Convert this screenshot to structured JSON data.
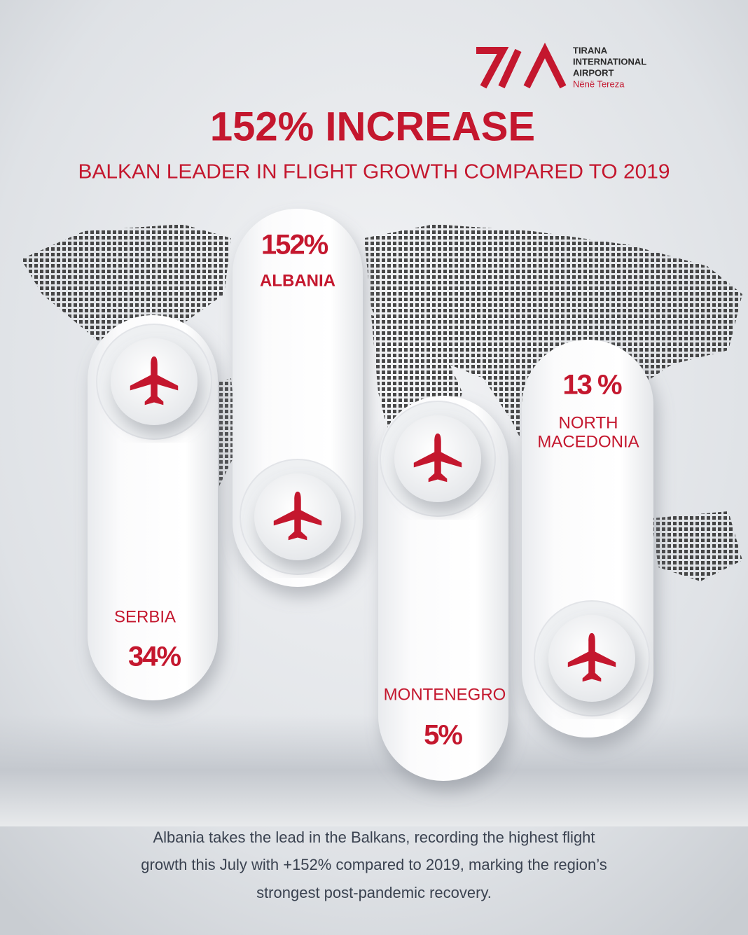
{
  "logo": {
    "lines": [
      "TIRANA",
      "INTERNATIONAL",
      "AIRPORT"
    ],
    "tagline": "Nënë Tereza"
  },
  "header": {
    "title": "152% INCREASE",
    "subtitle": "BALKAN LEADER IN FLIGHT GROWTH COMPARED TO 2019"
  },
  "cards": [
    {
      "country": [
        "SERBIA"
      ],
      "growth": "34%"
    },
    {
      "country": [
        "ALBANIA"
      ],
      "growth": "152%"
    },
    {
      "country": [
        "MONTENEGRO"
      ],
      "growth": "5%"
    },
    {
      "country": [
        "NORTH",
        "MACEDONIA"
      ],
      "growth": "13 %"
    }
  ],
  "footer": {
    "lines": [
      "Albania takes the lead in the Balkans, recording the highest flight",
      "growth this July with +152% compared to 2019, marking the region’s",
      "strongest post-pandemic recovery."
    ]
  }
}
